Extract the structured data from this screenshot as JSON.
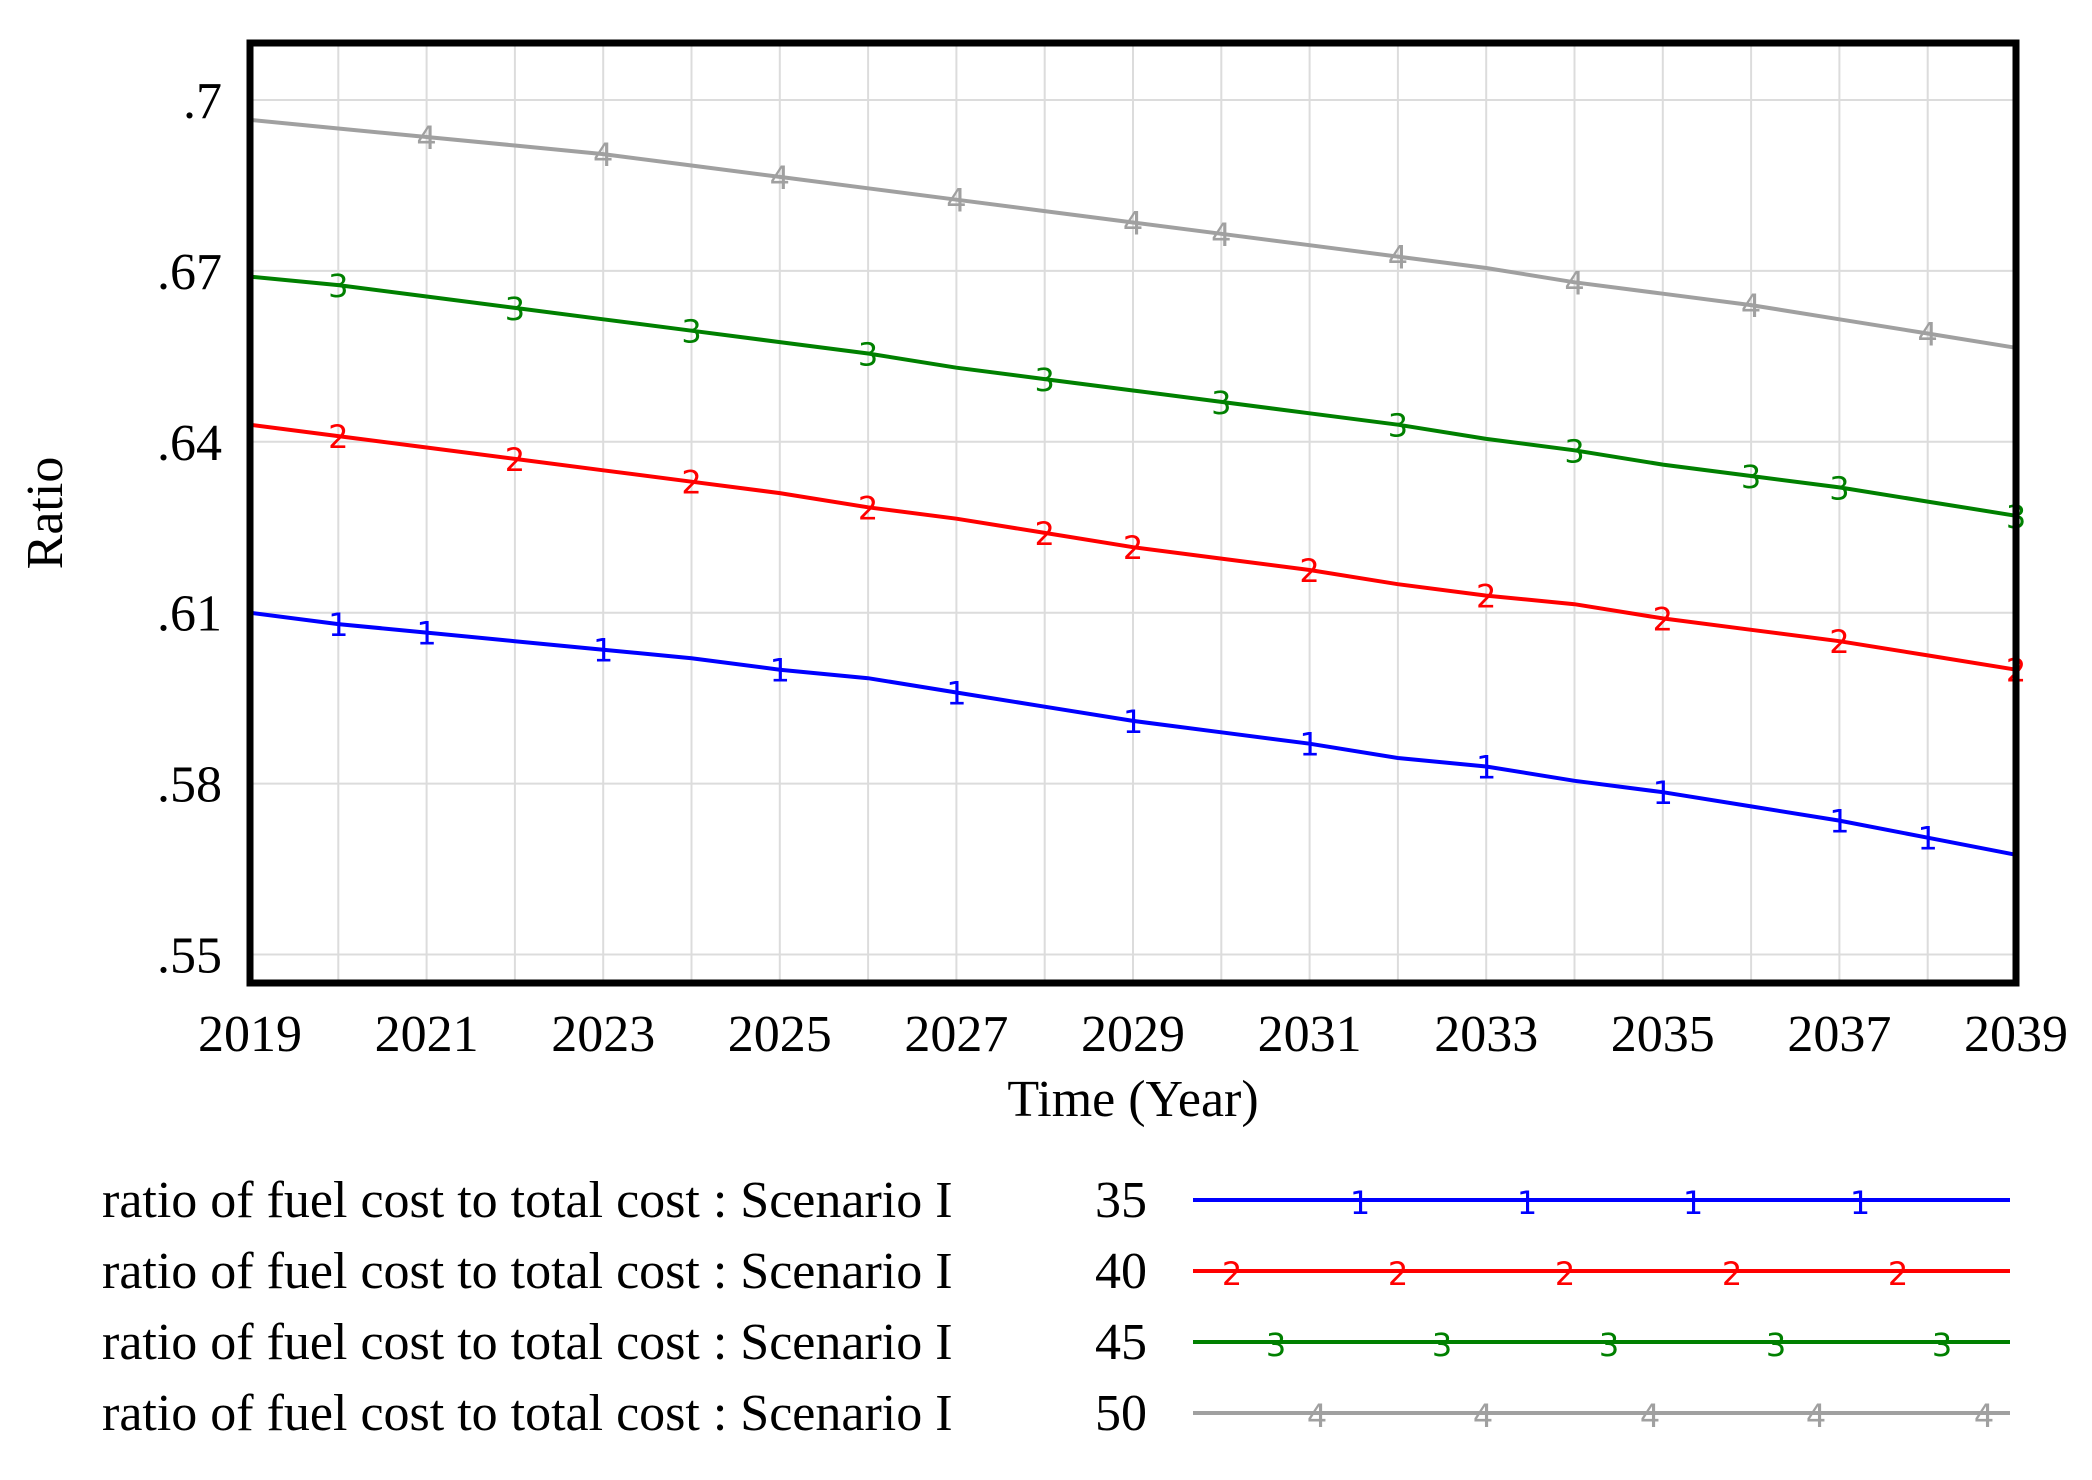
{
  "chart_data": {
    "type": "line",
    "title": "",
    "xlabel": "Time (Year)",
    "ylabel": "Ratio",
    "xlim": [
      2019,
      2039
    ],
    "ylim": [
      0.545,
      0.71
    ],
    "grid": true,
    "x_ticks": [
      "2019",
      "2021",
      "2023",
      "2025",
      "2027",
      "2029",
      "2031",
      "2033",
      "2035",
      "2037",
      "2039"
    ],
    "y_ticks": [
      ".7",
      ".67",
      ".64",
      ".61",
      ".58",
      ".55"
    ],
    "x": [
      2019,
      2020,
      2021,
      2022,
      2023,
      2024,
      2025,
      2026,
      2027,
      2028,
      2029,
      2030,
      2031,
      2032,
      2033,
      2034,
      2035,
      2036,
      2037,
      2038,
      2039
    ],
    "series": [
      {
        "name": "ratio of fuel cost to total cost : Scenario I",
        "scenario": "35",
        "marker": "1",
        "color": "#0000ff",
        "values": [
          0.61,
          0.608,
          0.6065,
          0.605,
          0.6035,
          0.602,
          0.6,
          0.5985,
          0.596,
          0.5935,
          0.591,
          0.589,
          0.587,
          0.5845,
          0.583,
          0.5805,
          0.5785,
          0.576,
          0.5735,
          0.5705,
          0.5675
        ]
      },
      {
        "name": "ratio of fuel cost to total cost : Scenario I",
        "scenario": "40",
        "marker": "2",
        "color": "#ff0000",
        "values": [
          0.643,
          0.641,
          0.639,
          0.637,
          0.635,
          0.633,
          0.631,
          0.6285,
          0.6265,
          0.624,
          0.6215,
          0.6195,
          0.6175,
          0.615,
          0.613,
          0.6115,
          0.609,
          0.607,
          0.605,
          0.6025,
          0.6
        ]
      },
      {
        "name": "ratio of fuel cost to total cost : Scenario I",
        "scenario": "45",
        "marker": "3",
        "color": "#008000",
        "values": [
          0.669,
          0.6675,
          0.6655,
          0.6635,
          0.6615,
          0.6595,
          0.6575,
          0.6555,
          0.653,
          0.651,
          0.649,
          0.647,
          0.645,
          0.643,
          0.6405,
          0.6385,
          0.636,
          0.634,
          0.632,
          0.6295,
          0.627
        ]
      },
      {
        "name": "ratio of fuel cost to total cost : Scenario I",
        "scenario": "50",
        "marker": "4",
        "color": "#a0a0a0",
        "values": [
          0.6965,
          0.695,
          0.6935,
          0.692,
          0.6905,
          0.6885,
          0.6865,
          0.6845,
          0.6825,
          0.6805,
          0.6785,
          0.6765,
          0.6745,
          0.6725,
          0.6705,
          0.668,
          0.666,
          0.664,
          0.6615,
          0.659,
          0.6565
        ]
      }
    ]
  }
}
